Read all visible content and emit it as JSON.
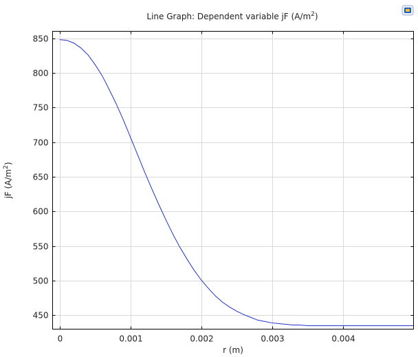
{
  "chart_data": {
    "type": "line",
    "title_main": "Line Graph: Dependent variable jF (A/m",
    "title_sup": "2",
    "title_end": ")",
    "xlabel": "r (m)",
    "ylabel_main": "jF (A/m",
    "ylabel_sup": "2",
    "ylabel_end": ")",
    "xlim": [
      -0.0001,
      0.005
    ],
    "ylim": [
      430,
      860
    ],
    "xticks": [
      0,
      0.001,
      0.002,
      0.003,
      0.004
    ],
    "xtick_labels": [
      "0",
      "0.001",
      "0.002",
      "0.003",
      "0.004"
    ],
    "yticks": [
      450,
      500,
      550,
      600,
      650,
      700,
      750,
      800,
      850
    ],
    "ytick_labels": [
      "450",
      "500",
      "550",
      "600",
      "650",
      "700",
      "750",
      "800",
      "850"
    ],
    "grid": true,
    "series": [
      {
        "color": "#1f33c8",
        "x": [
          0,
          0.0001,
          0.0002,
          0.0003,
          0.0004,
          0.0005,
          0.0006,
          0.0007,
          0.0008,
          0.0009,
          0.001,
          0.0011,
          0.0012,
          0.0013,
          0.0014,
          0.0015,
          0.0016,
          0.0017,
          0.0018,
          0.0019,
          0.002,
          0.0021,
          0.0022,
          0.0023,
          0.0024,
          0.0025,
          0.0026,
          0.0027,
          0.0028,
          0.0029,
          0.003,
          0.0031,
          0.0032,
          0.0033,
          0.0034,
          0.0035,
          0.0036,
          0.0037,
          0.0038,
          0.0039,
          0.004,
          0.0041,
          0.0042,
          0.0043,
          0.0044,
          0.0045,
          0.0046,
          0.0047,
          0.0048,
          0.0049,
          0.005
        ],
        "y": [
          848,
          847,
          843,
          836,
          826,
          812,
          796,
          776,
          755,
          732,
          707,
          682,
          657,
          633,
          610,
          588,
          567,
          548,
          531,
          515,
          501,
          489,
          478,
          469,
          462,
          456,
          451,
          447,
          443,
          441,
          439,
          438,
          437,
          436,
          436,
          435,
          435,
          435,
          435,
          435,
          435,
          435,
          435,
          435,
          435,
          435,
          435,
          435,
          435,
          435,
          435
        ]
      }
    ]
  },
  "toolbar": {
    "icon": "image-export-icon"
  }
}
